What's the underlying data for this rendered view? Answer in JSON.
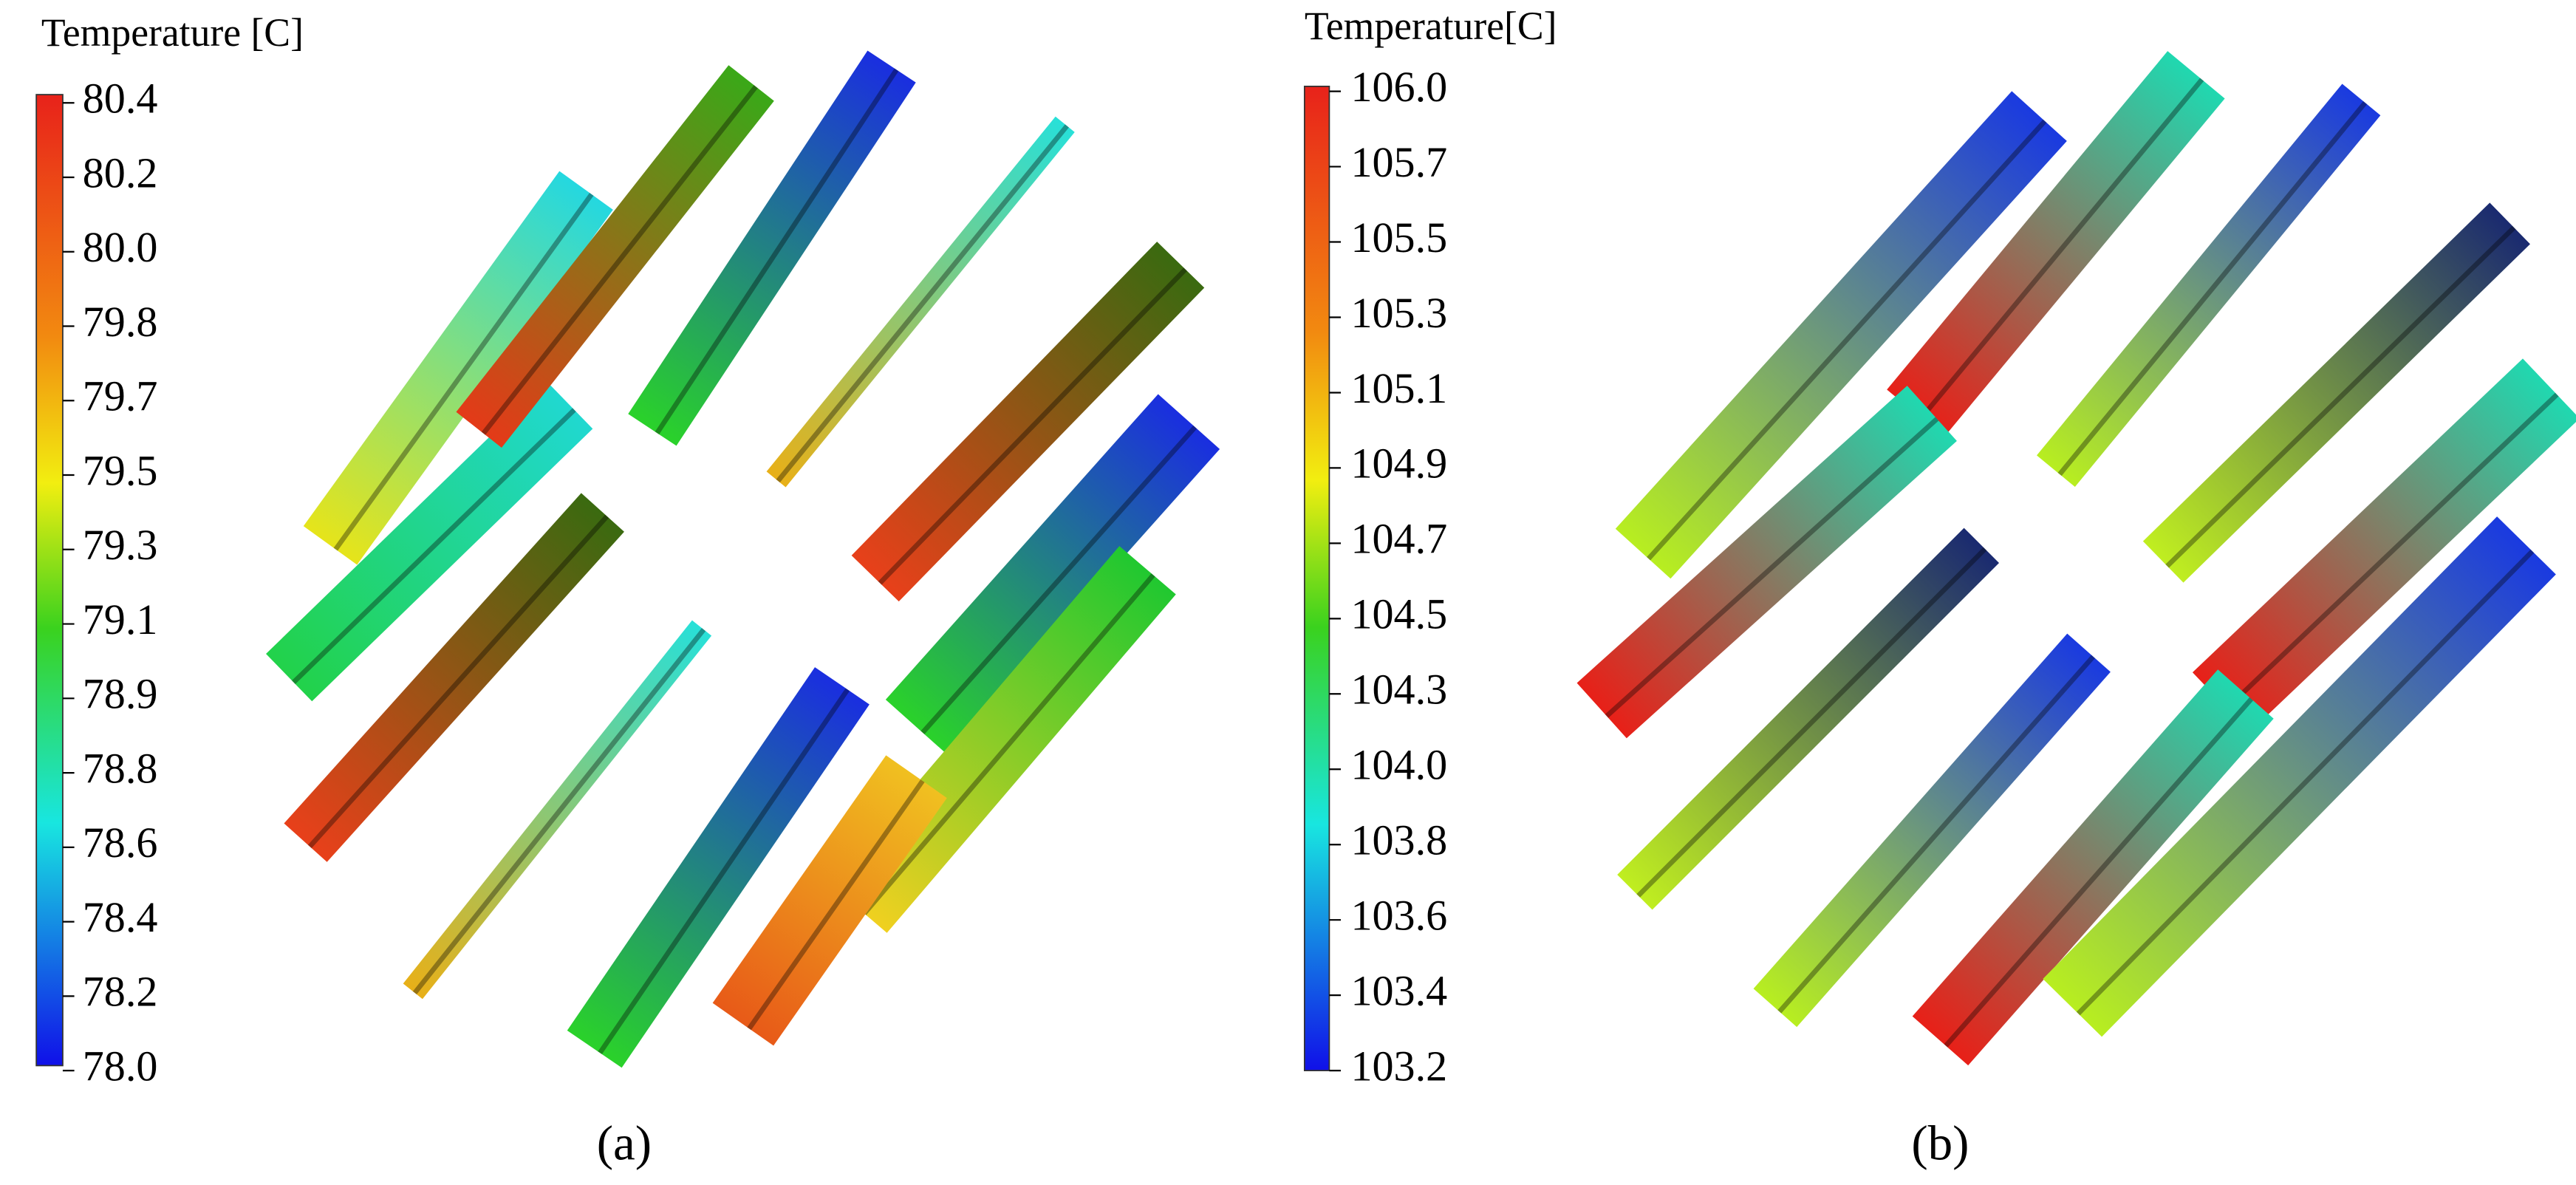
{
  "figure": {
    "panels": [
      {
        "label": "(a)",
        "colorbar": {
          "title": "Temperature [C]",
          "ticks": [
            80.4,
            80.2,
            {
              "value": 80.0,
              "label": "80.0"
            },
            79.8,
            79.7,
            79.5,
            79.3,
            79.1,
            78.9,
            78.8,
            78.6,
            78.4,
            78.2,
            {
              "value": 78.0,
              "label": "78.0"
            }
          ]
        }
      },
      {
        "label": "(b)",
        "colorbar": {
          "title": "Temperature[C]",
          "ticks": [
            {
              "value": 106.0,
              "label": "106.0"
            },
            105.7,
            105.5,
            105.3,
            105.1,
            104.9,
            104.7,
            104.5,
            104.3,
            {
              "value": 104.0,
              "label": "104.0"
            },
            103.8,
            103.6,
            103.4,
            103.2
          ]
        }
      }
    ]
  }
}
